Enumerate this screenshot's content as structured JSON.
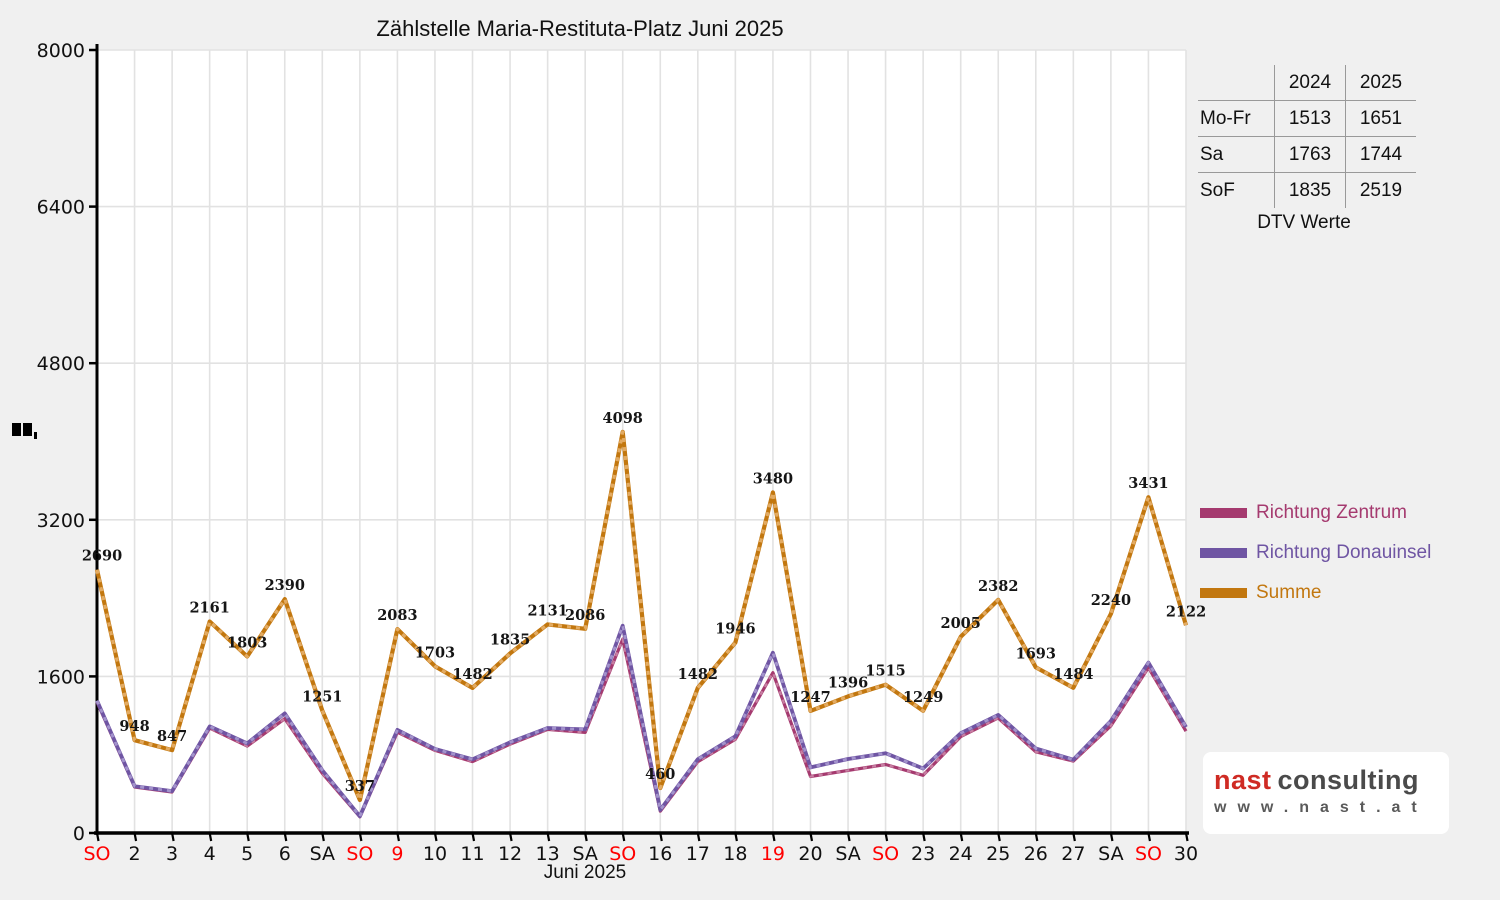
{
  "title": "Zählstelle Maria-Restituta-Platz Juni 2025",
  "xlabel": "Juni 2025",
  "colors": {
    "fig_bg": "#f0f0f0",
    "plot_bg": "#ffffff",
    "grid": "#e2e2e2",
    "axis": "#000000",
    "red_tick": "#ff0000",
    "data_label": "#151515"
  },
  "table": {
    "col_headers": [
      "2024",
      "2025"
    ],
    "rows": [
      {
        "label": "Mo-Fr",
        "v2024": "1513",
        "v2025": "1651"
      },
      {
        "label": "Sa",
        "v2024": "1763",
        "v2025": "1744"
      },
      {
        "label": "SoF",
        "v2024": "1835",
        "v2025": "2519"
      }
    ],
    "caption": "DTV Werte"
  },
  "legend": [
    {
      "label": "Richtung Zentrum",
      "color": "#a53a6f"
    },
    {
      "label": "Richtung Donauinsel",
      "color": "#6f55a3"
    },
    {
      "label": "Summe",
      "color": "#c2770f"
    }
  ],
  "logo": {
    "brand_red": "nast",
    "brand_gray": "consulting",
    "url_text": "www.nast.at"
  },
  "chart_data": {
    "type": "line",
    "title": "Zählstelle Maria-Restituta-Platz Juni 2025",
    "xlabel": "Juni 2025",
    "ylim": [
      0,
      8000
    ],
    "y_ticks": [
      0,
      1600,
      3200,
      4800,
      6400,
      8000
    ],
    "grid": true,
    "legend_position": "right",
    "x": [
      1,
      2,
      3,
      4,
      5,
      6,
      7,
      8,
      9,
      10,
      11,
      12,
      13,
      14,
      15,
      16,
      17,
      18,
      19,
      20,
      21,
      22,
      23,
      24,
      25,
      26,
      27,
      28,
      29,
      30
    ],
    "x_tick_labels": [
      {
        "text": "SO",
        "red": true
      },
      {
        "text": "2",
        "red": false
      },
      {
        "text": "3",
        "red": false
      },
      {
        "text": "4",
        "red": false
      },
      {
        "text": "5",
        "red": false
      },
      {
        "text": "6",
        "red": false
      },
      {
        "text": "SA",
        "red": false
      },
      {
        "text": "SO",
        "red": true
      },
      {
        "text": "9",
        "red": true
      },
      {
        "text": "10",
        "red": false
      },
      {
        "text": "11",
        "red": false
      },
      {
        "text": "12",
        "red": false
      },
      {
        "text": "13",
        "red": false
      },
      {
        "text": "SA",
        "red": false
      },
      {
        "text": "SO",
        "red": true
      },
      {
        "text": "16",
        "red": false
      },
      {
        "text": "17",
        "red": false
      },
      {
        "text": "18",
        "red": false
      },
      {
        "text": "19",
        "red": true
      },
      {
        "text": "20",
        "red": false
      },
      {
        "text": "SA",
        "red": false
      },
      {
        "text": "SO",
        "red": true
      },
      {
        "text": "23",
        "red": false
      },
      {
        "text": "24",
        "red": false
      },
      {
        "text": "25",
        "red": false
      },
      {
        "text": "26",
        "red": false
      },
      {
        "text": "27",
        "red": false
      },
      {
        "text": "SA",
        "red": false
      },
      {
        "text": "SO",
        "red": true
      },
      {
        "text": "30",
        "red": false
      }
    ],
    "series": [
      {
        "name": "Richtung Zentrum",
        "color": "#a53a6f",
        "color_light": "#c77fa2",
        "estimated": true,
        "values": [
          1338,
          470,
          419,
          1072,
          888,
          1168,
          610,
          166,
          1030,
          844,
          729,
          908,
          1058,
          1028,
          1980,
          224,
          728,
          958,
          1638,
          577,
          640,
          700,
          590,
          985,
          1175,
          830,
          735,
          1095,
          1690,
          1040
        ]
      },
      {
        "name": "Richtung Donauinsel",
        "color": "#6f55a3",
        "color_light": "#a393cc",
        "estimated": true,
        "values": [
          1352,
          478,
          428,
          1089,
          915,
          1222,
          641,
          171,
          1053,
          859,
          753,
          927,
          1073,
          1058,
          2118,
          236,
          754,
          988,
          1842,
          670,
          756,
          815,
          659,
          1020,
          1207,
          863,
          749,
          1145,
          1741,
          1082
        ]
      },
      {
        "name": "Summe",
        "color": "#c2770f",
        "color_light": "#e3ab62",
        "labeled": true,
        "values": [
          2690,
          948,
          847,
          2161,
          1803,
          2390,
          1251,
          337,
          2083,
          1703,
          1482,
          1835,
          2131,
          2086,
          4098,
          460,
          1482,
          1946,
          3480,
          1247,
          1396,
          1515,
          1249,
          2005,
          2382,
          1693,
          1484,
          2240,
          3431,
          2122
        ]
      }
    ]
  }
}
